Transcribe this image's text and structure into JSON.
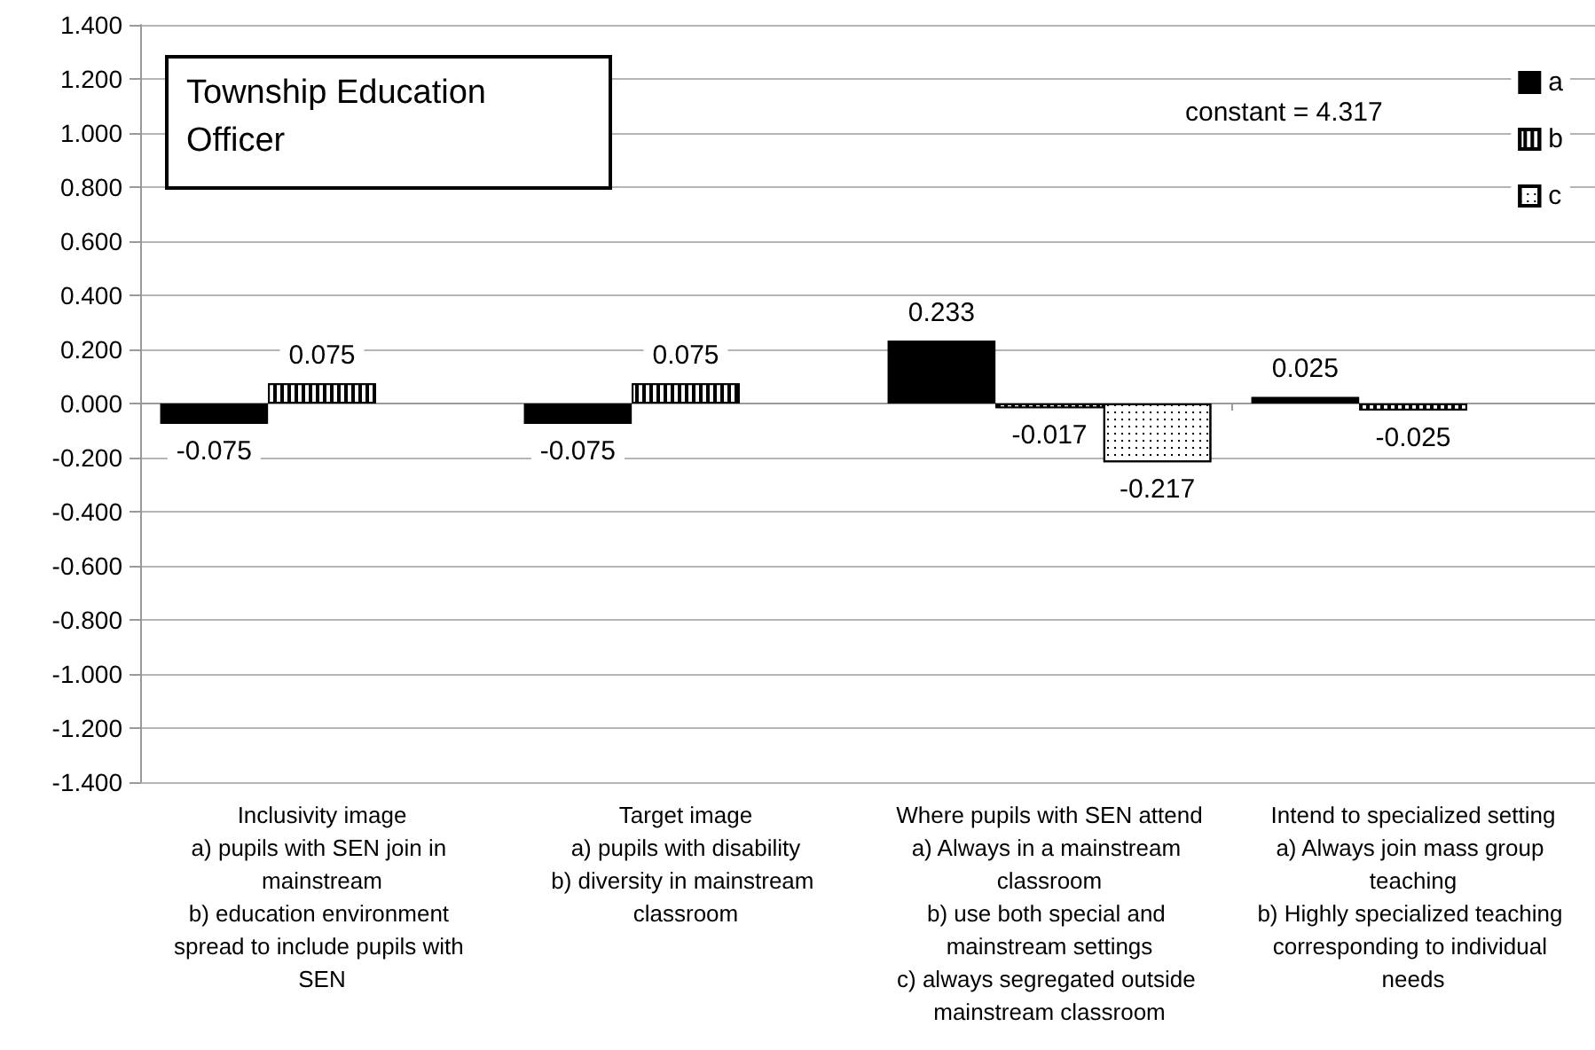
{
  "chart_data": {
    "type": "bar",
    "title": "Township Education Officer",
    "annotations": [
      "constant = 4.317"
    ],
    "categories": [
      "Inclusivity image\na) pupils with SEN join in mainstream\nb) education environment spread to include pupils with SEN",
      "Target image\na) pupils with disability\nb) diversity in mainstream classroom",
      "Where pupils with SEN attend\na) Always in a mainstream classroom\nb) use both special and mainstream settings\nc) always segregated outside mainstream classroom",
      "Intend to specialized setting\na) Always join mass group teaching\nb) Highly specialized teaching corresponding to individual needs"
    ],
    "series": [
      {
        "name": "a",
        "color": "#000000",
        "values": [
          -0.075,
          -0.075,
          0.233,
          0.025
        ]
      },
      {
        "name": "b",
        "color": "#000000",
        "values": [
          0.075,
          0.075,
          -0.017,
          -0.025
        ]
      },
      {
        "name": "c",
        "color": "#ffffff",
        "values": [
          null,
          null,
          -0.217,
          null
        ]
      }
    ],
    "ylim": [
      -1.4,
      1.4
    ],
    "yticks": [
      {
        "value": -1.4,
        "label": "-1.400"
      },
      {
        "value": -1.2,
        "label": "-1.200"
      },
      {
        "value": -1.0,
        "label": "-1.000"
      },
      {
        "value": -0.8,
        "label": "-0.800"
      },
      {
        "value": -0.6,
        "label": "-0.600"
      },
      {
        "value": -0.4,
        "label": "-0.400"
      },
      {
        "value": -0.2,
        "label": "-0.200"
      },
      {
        "value": 0,
        "label": "0.000"
      },
      {
        "value": 0.2,
        "label": "0.200"
      },
      {
        "value": 0.4,
        "label": "0.400"
      },
      {
        "value": 0.6,
        "label": "0.600"
      },
      {
        "value": 0.8,
        "label": "0.800"
      },
      {
        "value": 1.0,
        "label": "1.000"
      },
      {
        "value": 1.2,
        "label": "1.200"
      },
      {
        "value": 1.4,
        "label": "1.400"
      }
    ],
    "grid": "y",
    "legend": "top right",
    "data_labels": true
  }
}
